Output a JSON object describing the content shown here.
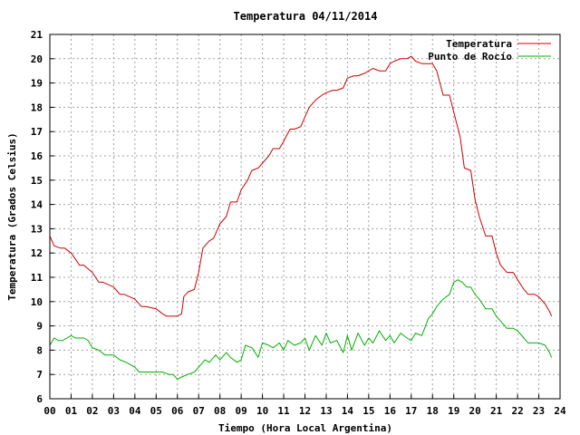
{
  "chart_data": {
    "type": "line",
    "title": "Temperatura 04/11/2014",
    "xlabel": "Tiempo (Hora Local Argentina)",
    "ylabel": "Temperatura (Grados Celsius)",
    "xlim": [
      0,
      24
    ],
    "ylim": [
      6,
      21
    ],
    "grid": true,
    "legend_position": "top-right",
    "x_tick_labels": [
      "00",
      "01",
      "02",
      "03",
      "04",
      "05",
      "06",
      "07",
      "08",
      "09",
      "10",
      "11",
      "12",
      "13",
      "14",
      "15",
      "16",
      "17",
      "18",
      "19",
      "20",
      "21",
      "22",
      "23",
      "24"
    ],
    "y_tick_labels": [
      "6",
      "7",
      "8",
      "9",
      "10",
      "11",
      "12",
      "13",
      "14",
      "15",
      "16",
      "17",
      "18",
      "19",
      "20",
      "21"
    ],
    "series": [
      {
        "name": "Temperatura",
        "color": "#cc0000",
        "x": [
          0,
          0.2,
          0.5,
          0.7,
          1.0,
          1.4,
          1.6,
          2.0,
          2.3,
          2.5,
          3.0,
          3.3,
          3.5,
          4.0,
          4.3,
          4.5,
          5.0,
          5.3,
          5.5,
          6.0,
          6.2,
          6.3,
          6.5,
          6.8,
          7.0,
          7.2,
          7.5,
          7.7,
          8.0,
          8.3,
          8.5,
          8.8,
          9.0,
          9.3,
          9.5,
          9.8,
          10.0,
          10.3,
          10.5,
          10.8,
          11.0,
          11.3,
          11.5,
          11.8,
          12.0,
          12.2,
          12.5,
          12.8,
          13.0,
          13.3,
          13.5,
          13.8,
          14.0,
          14.3,
          14.5,
          14.8,
          15.0,
          15.2,
          15.5,
          15.8,
          16.0,
          16.2,
          16.5,
          16.8,
          17.0,
          17.2,
          17.5,
          17.8,
          18.0,
          18.2,
          18.5,
          18.8,
          19.0,
          19.3,
          19.5,
          19.8,
          20.0,
          20.2,
          20.5,
          20.8,
          21.0,
          21.2,
          21.5,
          21.8,
          22.0,
          22.3,
          22.5,
          22.8,
          23.0,
          23.3,
          23.5,
          23.6
        ],
        "y": [
          12.7,
          12.3,
          12.2,
          12.2,
          12.0,
          11.5,
          11.5,
          11.2,
          10.8,
          10.8,
          10.6,
          10.3,
          10.3,
          10.1,
          9.8,
          9.8,
          9.7,
          9.5,
          9.4,
          9.4,
          9.5,
          10.2,
          10.4,
          10.5,
          11.2,
          12.2,
          12.5,
          12.6,
          13.2,
          13.5,
          14.1,
          14.1,
          14.6,
          15.0,
          15.4,
          15.5,
          15.7,
          16.0,
          16.3,
          16.3,
          16.6,
          17.1,
          17.1,
          17.2,
          17.6,
          18.0,
          18.3,
          18.5,
          18.6,
          18.7,
          18.7,
          18.8,
          19.2,
          19.3,
          19.3,
          19.4,
          19.5,
          19.6,
          19.5,
          19.5,
          19.8,
          19.9,
          20.0,
          20.0,
          20.1,
          19.9,
          19.8,
          19.8,
          19.8,
          19.5,
          18.5,
          18.5,
          17.8,
          16.8,
          15.5,
          15.4,
          14.2,
          13.5,
          12.7,
          12.7,
          12.0,
          11.5,
          11.2,
          11.2,
          10.9,
          10.5,
          10.3,
          10.3,
          10.2,
          9.9,
          9.6,
          9.4
        ]
      },
      {
        "name": "Punto de Rocío",
        "color": "#00b000",
        "x": [
          0,
          0.2,
          0.4,
          0.6,
          0.8,
          1.0,
          1.2,
          1.4,
          1.6,
          1.8,
          2.0,
          2.3,
          2.6,
          3.0,
          3.3,
          3.6,
          4.0,
          4.2,
          4.5,
          4.8,
          5.0,
          5.3,
          5.6,
          5.8,
          6.0,
          6.2,
          6.5,
          6.8,
          7.0,
          7.3,
          7.5,
          7.8,
          8.0,
          8.3,
          8.5,
          8.8,
          9.0,
          9.2,
          9.5,
          9.8,
          10.0,
          10.3,
          10.5,
          10.8,
          11.0,
          11.2,
          11.5,
          11.8,
          12.0,
          12.2,
          12.5,
          12.8,
          13.0,
          13.2,
          13.5,
          13.8,
          14.0,
          14.2,
          14.5,
          14.8,
          15.0,
          15.2,
          15.5,
          15.8,
          16.0,
          16.2,
          16.5,
          16.8,
          17.0,
          17.2,
          17.5,
          17.8,
          18.0,
          18.2,
          18.5,
          18.8,
          19.0,
          19.2,
          19.4,
          19.6,
          19.8,
          20.0,
          20.2,
          20.5,
          20.8,
          21.0,
          21.3,
          21.5,
          21.8,
          22.0,
          22.3,
          22.5,
          22.8,
          23.0,
          23.3,
          23.5,
          23.6
        ],
        "y": [
          8.2,
          8.5,
          8.4,
          8.4,
          8.5,
          8.6,
          8.5,
          8.5,
          8.5,
          8.4,
          8.1,
          8.0,
          7.8,
          7.8,
          7.6,
          7.5,
          7.3,
          7.1,
          7.1,
          7.1,
          7.1,
          7.1,
          7.0,
          7.0,
          6.8,
          6.9,
          7.0,
          7.1,
          7.3,
          7.6,
          7.5,
          7.8,
          7.6,
          7.9,
          7.7,
          7.5,
          7.6,
          8.2,
          8.1,
          7.7,
          8.3,
          8.2,
          8.1,
          8.3,
          8.0,
          8.4,
          8.2,
          8.3,
          8.5,
          8.0,
          8.6,
          8.2,
          8.7,
          8.3,
          8.4,
          7.9,
          8.6,
          8.0,
          8.7,
          8.2,
          8.5,
          8.3,
          8.8,
          8.4,
          8.6,
          8.3,
          8.7,
          8.5,
          8.4,
          8.7,
          8.6,
          9.3,
          9.5,
          9.8,
          10.1,
          10.3,
          10.8,
          10.9,
          10.8,
          10.6,
          10.6,
          10.3,
          10.1,
          9.7,
          9.7,
          9.4,
          9.1,
          8.9,
          8.9,
          8.8,
          8.5,
          8.3,
          8.3,
          8.3,
          8.2,
          7.9,
          7.7
        ]
      }
    ]
  }
}
